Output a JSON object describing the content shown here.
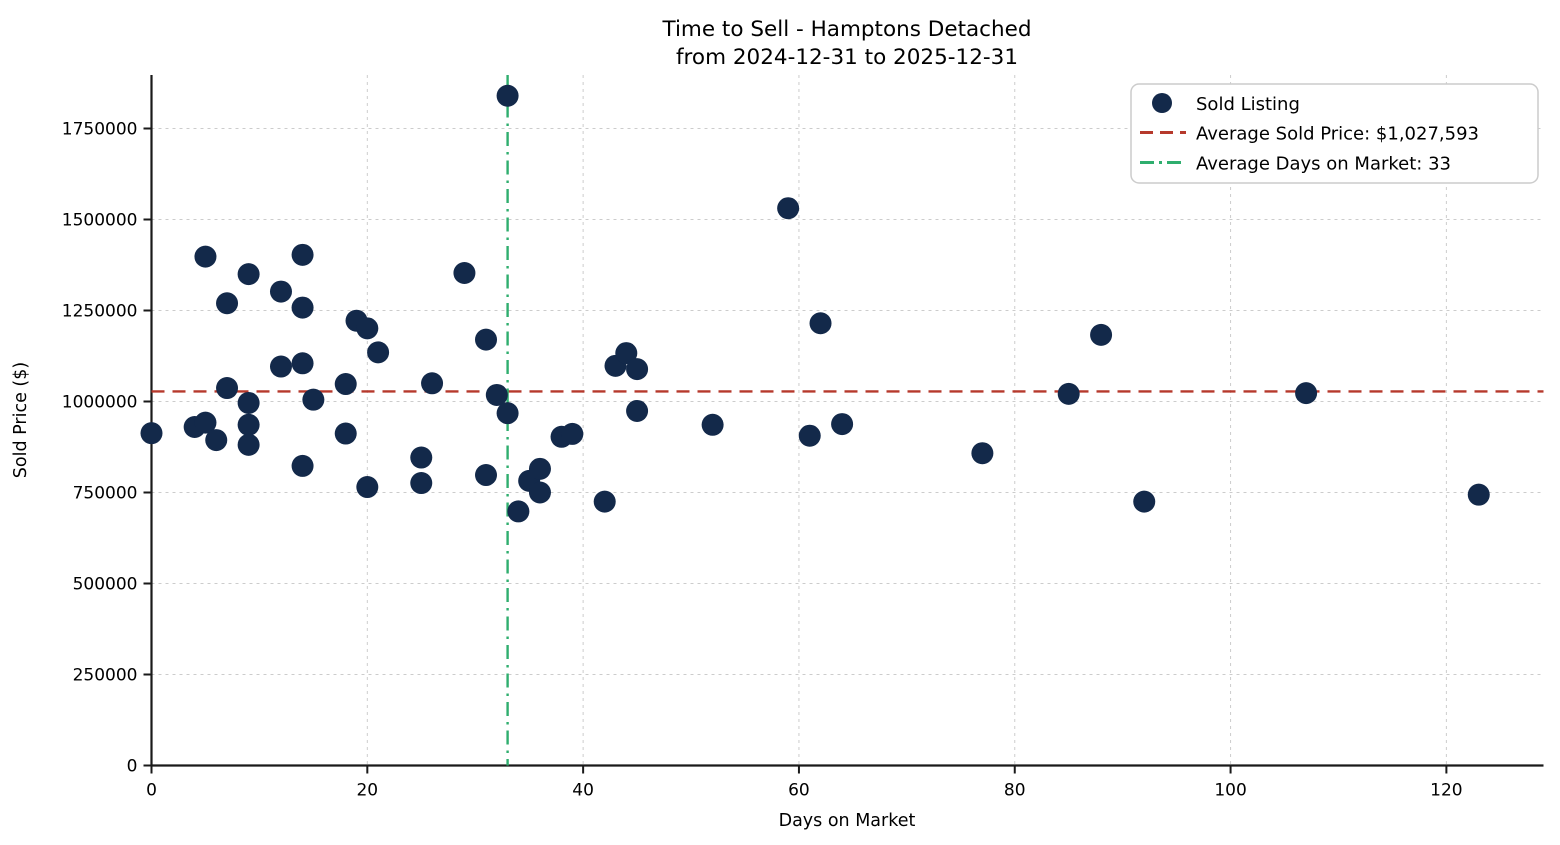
{
  "figure": {
    "background": "#ffffff"
  },
  "chart_data": {
    "type": "scatter",
    "title": "Time to Sell - Hamptons Detached",
    "subtitle": "from 2024-12-31 to 2025-12-31",
    "xlabel": "Days on Market",
    "ylabel": "Sold Price ($)",
    "xlim": [
      0,
      129
    ],
    "ylim": [
      0,
      1897000
    ],
    "xticks": [
      0,
      20,
      40,
      60,
      80,
      100,
      120
    ],
    "yticks": [
      0,
      250000,
      500000,
      750000,
      1000000,
      1250000,
      1500000,
      1750000
    ],
    "grid": true,
    "grid_style": "dashed",
    "legend_position": "upper right",
    "series": [
      {
        "name": "Sold Listing",
        "type": "scatter",
        "color": "#13294A",
        "marker_radius": 11,
        "points": [
          [
            0,
            913000
          ],
          [
            4,
            930000
          ],
          [
            5,
            942000
          ],
          [
            5,
            1398000
          ],
          [
            6,
            894000
          ],
          [
            7,
            1270000
          ],
          [
            7,
            1037000
          ],
          [
            9,
            1350000
          ],
          [
            9,
            996000
          ],
          [
            9,
            936000
          ],
          [
            9,
            881000
          ],
          [
            12,
            1302000
          ],
          [
            12,
            1096000
          ],
          [
            14,
            1403000
          ],
          [
            14,
            1258000
          ],
          [
            14,
            1105000
          ],
          [
            14,
            823000
          ],
          [
            15,
            1005000
          ],
          [
            18,
            1048000
          ],
          [
            18,
            912000
          ],
          [
            19,
            1222000
          ],
          [
            20,
            1201000
          ],
          [
            20,
            765000
          ],
          [
            21,
            1135000
          ],
          [
            25,
            846000
          ],
          [
            25,
            776000
          ],
          [
            26,
            1050000
          ],
          [
            29,
            1353000
          ],
          [
            31,
            1170000
          ],
          [
            31,
            798000
          ],
          [
            32,
            1018000
          ],
          [
            33,
            1840000
          ],
          [
            33,
            968000
          ],
          [
            34,
            698000
          ],
          [
            35,
            782000
          ],
          [
            36,
            815000
          ],
          [
            36,
            750000
          ],
          [
            38,
            903000
          ],
          [
            39,
            911000
          ],
          [
            42,
            725000
          ],
          [
            43,
            1098000
          ],
          [
            44,
            1133000
          ],
          [
            45,
            1089000
          ],
          [
            45,
            974000
          ],
          [
            52,
            936000
          ],
          [
            59,
            1531000
          ],
          [
            61,
            906000
          ],
          [
            62,
            1215000
          ],
          [
            64,
            938000
          ],
          [
            77,
            858000
          ],
          [
            85,
            1021000
          ],
          [
            88,
            1183000
          ],
          [
            92,
            725000
          ],
          [
            107,
            1023000
          ],
          [
            123,
            744000
          ]
        ]
      }
    ],
    "reference_lines": [
      {
        "name": "avg-sold-price",
        "orientation": "horizontal",
        "value": 1027593,
        "label": "Average Sold Price: $1,027,593",
        "color": "#B6392C",
        "dash": "dashed"
      },
      {
        "name": "avg-days-on-market",
        "orientation": "vertical",
        "value": 33,
        "label": "Average Days on Market: 33",
        "color": "#2FAE6E",
        "dash": "dashdot"
      }
    ]
  },
  "colors": {
    "grid": "#cccccc",
    "axis": "#1a1a1a",
    "legend_border": "#cccccc",
    "background": "#ffffff"
  }
}
